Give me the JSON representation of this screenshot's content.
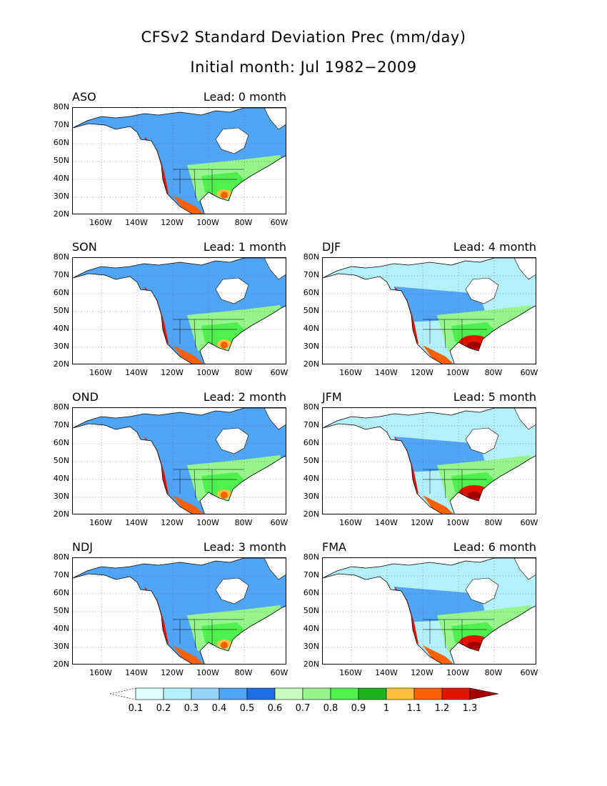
{
  "title_line1": "CFSv2 Standard Deviation Prec (mm/day)",
  "title_line2": "Initial month: Jul 1982−2009",
  "y_ticks": [
    "80N",
    "70N",
    "60N",
    "50N",
    "40N",
    "30N",
    "20N"
  ],
  "x_ticks": [
    "160W",
    "140W",
    "120W",
    "100W",
    "80W",
    "60W"
  ],
  "panels": [
    {
      "season": "ASO",
      "lead": "Lead: 0 month"
    },
    {
      "season": "SON",
      "lead": "Lead: 1 month"
    },
    {
      "season": "DJF",
      "lead": "Lead: 4 month"
    },
    {
      "season": "OND",
      "lead": "Lead: 2 month"
    },
    {
      "season": "JFM",
      "lead": "Lead: 5 month"
    },
    {
      "season": "NDJ",
      "lead": "Lead: 3 month"
    },
    {
      "season": "FMA",
      "lead": "Lead: 6 month"
    }
  ],
  "colorbar": {
    "labels": [
      "0.1",
      "0.2",
      "0.3",
      "0.4",
      "0.5",
      "0.6",
      "0.7",
      "0.8",
      "0.9",
      "1",
      "1.1",
      "1.2",
      "1.3"
    ],
    "colors": [
      "#e0ffff",
      "#b4f0fa",
      "#96d2fa",
      "#50a5f5",
      "#1e6ee6",
      "#c8ffbe",
      "#96f58c",
      "#50f050",
      "#1eb41e",
      "#ffc03c",
      "#ff6000",
      "#e11400",
      "#a50000"
    ],
    "under_color": "#ffffff"
  }
}
